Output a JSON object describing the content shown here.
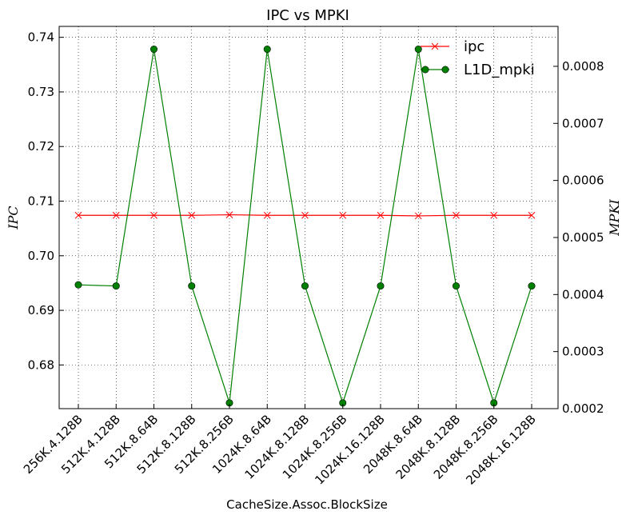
{
  "chart_data": {
    "type": "line",
    "title": "IPC vs MPKI",
    "xlabel": "CacheSize.Assoc.BlockSize",
    "ylabel_left": "IPC",
    "ylabel_right": "MPKI",
    "categories": [
      "256K.4.128B",
      "512K.4.128B",
      "512K.8.64B",
      "512K.8.128B",
      "512K.8.256B",
      "1024K.8.64B",
      "1024K.8.128B",
      "1024K.8.256B",
      "1024K.16.128B",
      "2048K.8.64B",
      "2048K.8.128B",
      "2048K.8.256B",
      "2048K.16.128B"
    ],
    "left_axis": {
      "ylim": [
        0.672,
        0.742
      ],
      "ticks": [
        0.68,
        0.69,
        0.7,
        0.71,
        0.72,
        0.73,
        0.74
      ],
      "tick_labels": [
        "0.68",
        "0.69",
        "0.70",
        "0.71",
        "0.72",
        "0.73",
        "0.74"
      ]
    },
    "right_axis": {
      "ylim": [
        0.0002,
        0.00087
      ],
      "ticks": [
        0.0002,
        0.0003,
        0.0004,
        0.0005,
        0.0006,
        0.0007,
        0.0008
      ],
      "tick_labels": [
        "0.0002",
        "0.0003",
        "0.0004",
        "0.0005",
        "0.0006",
        "0.0007",
        "0.0008"
      ]
    },
    "grid": true,
    "legend_position": "top-right",
    "series": [
      {
        "name": "ipc",
        "axis": "left",
        "color": "#ff0000",
        "marker": "x",
        "values": [
          0.7074,
          0.7074,
          0.7074,
          0.7074,
          0.7075,
          0.7074,
          0.7074,
          0.7074,
          0.7074,
          0.7073,
          0.7074,
          0.7074,
          0.7074
        ]
      },
      {
        "name": "L1D_mpki",
        "axis": "right",
        "color": "#008000",
        "marker": "circle",
        "values": [
          0.000417,
          0.000415,
          0.00083,
          0.000415,
          0.00021,
          0.00083,
          0.000415,
          0.00021,
          0.000415,
          0.00083,
          0.000415,
          0.00021,
          0.000415
        ]
      }
    ]
  }
}
